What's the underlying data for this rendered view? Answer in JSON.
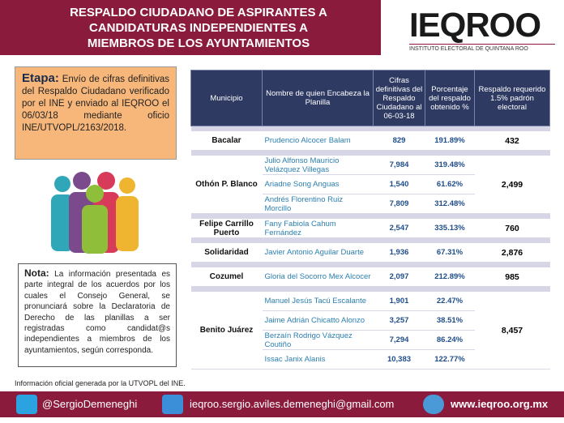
{
  "header": {
    "title_lines": [
      "RESPALDO CIUDADANO DE ASPIRANTES A",
      "CANDIDATURAS INDEPENDIENTES A",
      "MIEMBROS DE LOS AYUNTAMIENTOS"
    ],
    "logo": "IEQROO",
    "logo_subtitle": "INSTITUTO ELECTORAL DE QUINTANA ROO"
  },
  "etapa": {
    "label": "Etapa:",
    "text": "Envío de cifras definitivas del Respaldo Ciudadano verificado por el INE y enviado al IEQROO el 06/03/18 mediante oficio INE/UTVOPL/2163/2018."
  },
  "nota": {
    "label": "Nota:",
    "text": "La información presentada es parte integral de los acuerdos por los cuales el Consejo General, se pronunciará sobre la Declaratoria de Derecho de las planillas a ser registradas como candidat@s independientes a miembros de los ayuntamientos, según corresponda."
  },
  "table": {
    "headers": [
      "Municipio",
      "Nombre de quien Encabeza la Planilla",
      "Cifras definitivas del Respaldo Ciudadano al 06-03-18",
      "Porcentaje del respaldo obtenido %",
      "Respaldo requerido 1.5% padrón electoral"
    ],
    "groups": [
      {
        "municipio": "Bacalar",
        "requerido": "432",
        "candidates": [
          {
            "name": "Prudencio Alcocer Balam",
            "cifra": "829",
            "porcentaje": "191.89%"
          }
        ]
      },
      {
        "municipio": "Othón P. Blanco",
        "requerido": "2,499",
        "candidates": [
          {
            "name": "Julio Alfonso Mauricio Velázquez Villegas",
            "cifra": "7,984",
            "porcentaje": "319.48%"
          },
          {
            "name": "Ariadne Song Anguas",
            "cifra": "1,540",
            "porcentaje": "61.62%"
          },
          {
            "name": "Andrés Florentino Ruiz Morcillo",
            "cifra": "7,809",
            "porcentaje": "312.48%"
          }
        ]
      },
      {
        "municipio": "Felipe Carrillo Puerto",
        "requerido": "760",
        "candidates": [
          {
            "name": "Fany Fabiola Cahum Fernández",
            "cifra": "2,547",
            "porcentaje": "335.13%"
          }
        ]
      },
      {
        "municipio": "Solidaridad",
        "requerido": "2,876",
        "candidates": [
          {
            "name": "Javier Antonio Aguilar Duarte",
            "cifra": "1,936",
            "porcentaje": "67.31%"
          }
        ]
      },
      {
        "municipio": "Cozumel",
        "requerido": "985",
        "candidates": [
          {
            "name": "Gloria del Socorro Mex Alcocer",
            "cifra": "2,097",
            "porcentaje": "212.89%"
          }
        ]
      },
      {
        "municipio": "Benito Juárez",
        "requerido": "8,457",
        "candidates": [
          {
            "name": "Manuel Jesús Tacú Escalante",
            "cifra": "1,901",
            "porcentaje": "22.47%"
          },
          {
            "name": "Jaime Adrián Chicatto Alonzo",
            "cifra": "3,257",
            "porcentaje": "38.51%"
          },
          {
            "name": "Berzaín Rodrigo Vázquez Coutiño",
            "cifra": "7,294",
            "porcentaje": "86.24%"
          },
          {
            "name": "Issac Janix Alanis",
            "cifra": "10,383",
            "porcentaje": "122.77%"
          }
        ]
      }
    ]
  },
  "source": "Información oficial generada por  la UTVOPL del INE.",
  "footer": {
    "twitter": "@SergioDemeneghi",
    "email": "ieqroo.sergio.aviles.demeneghi@gmail.com",
    "web": "www.ieqroo.org.mx"
  }
}
